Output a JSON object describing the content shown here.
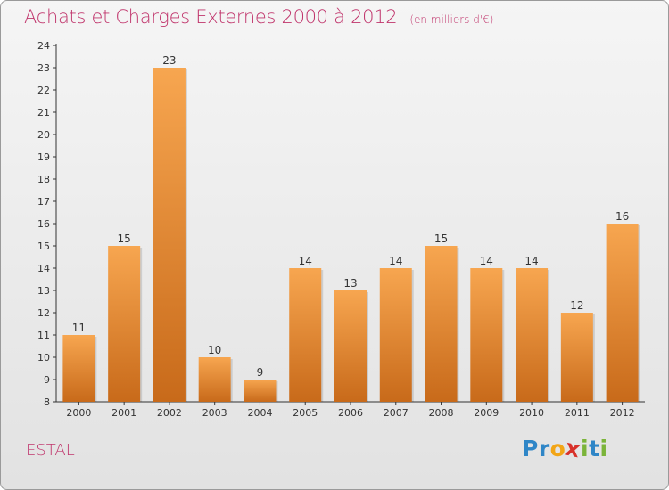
{
  "header": {
    "title": "Achats et Charges Externes 2000 à 2012",
    "subtitle": "(en milliers d'€)"
  },
  "footer": {
    "town": "ESTAL",
    "logo": "Proxiti",
    "logo_letters": [
      {
        "ch": "P",
        "color": "#2f86c7"
      },
      {
        "ch": "r",
        "color": "#2f86c7"
      },
      {
        "ch": "o",
        "color": "#f2a516"
      },
      {
        "ch": "x",
        "color": "#d8312a"
      },
      {
        "ch": "i",
        "color": "#7bb43a"
      },
      {
        "ch": "t",
        "color": "#2f86c7"
      },
      {
        "ch": "i",
        "color": "#7bb43a"
      }
    ]
  },
  "chart_data": {
    "type": "bar",
    "title": "Achats et Charges Externes 2000 à 2012",
    "subtitle": "(en milliers d'€)",
    "categories": [
      "2000",
      "2001",
      "2002",
      "2003",
      "2004",
      "2005",
      "2006",
      "2007",
      "2008",
      "2009",
      "2010",
      "2011",
      "2012"
    ],
    "values": [
      11,
      15,
      23,
      10,
      9,
      14,
      13,
      14,
      15,
      14,
      14,
      12,
      16
    ],
    "ylim": [
      8,
      24
    ],
    "yticks": [
      8,
      9,
      10,
      11,
      12,
      13,
      14,
      15,
      16,
      17,
      18,
      19,
      20,
      21,
      22,
      23,
      24
    ],
    "grid": false,
    "data_labels": true,
    "colors": {
      "bar_light": "#f7a650",
      "bar_dark": "#c86a1a",
      "title": "#c0356c"
    }
  }
}
